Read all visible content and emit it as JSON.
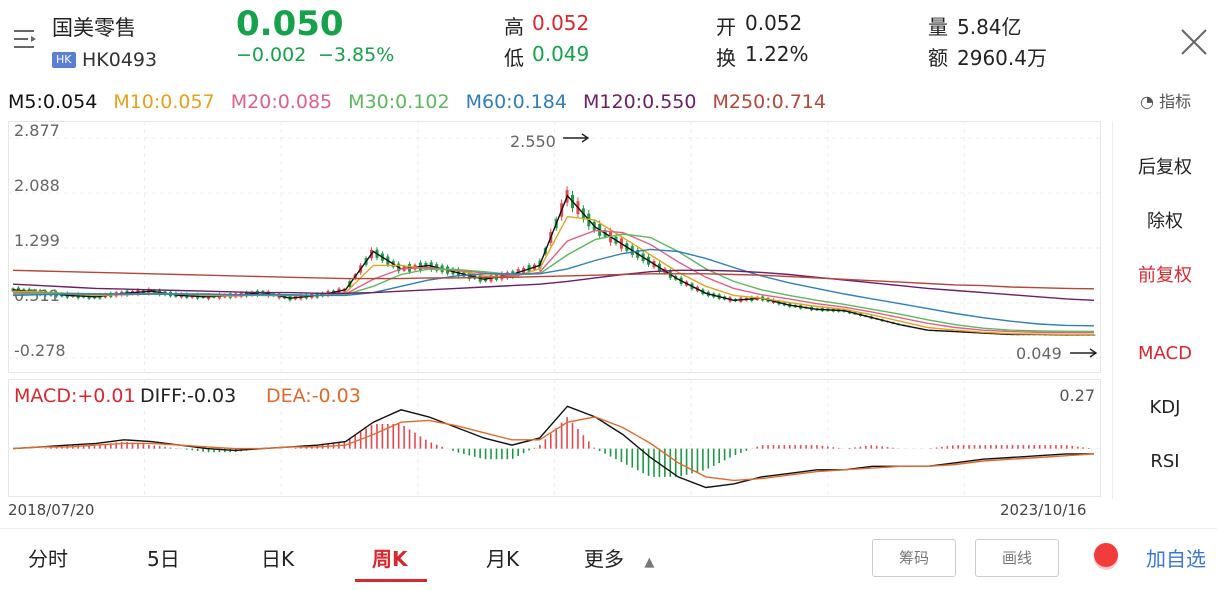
{
  "header": {
    "stock_name": "国美零售",
    "market_badge": "HK",
    "stock_code": "HK0493",
    "price": "0.050",
    "change": "−0.002",
    "change_pct": "−3.85%",
    "stats": [
      {
        "label": "高",
        "value": "0.052",
        "color": "#d9272e"
      },
      {
        "label": "低",
        "value": "0.049",
        "color": "#15a24a"
      },
      {
        "label": "开",
        "value": "0.052",
        "color": "#222222"
      },
      {
        "label": "换",
        "value": "1.22%",
        "color": "#222222"
      },
      {
        "label": "量",
        "value": "5.84亿",
        "color": "#222222"
      },
      {
        "label": "额",
        "value": "2960.4万",
        "color": "#222222"
      }
    ]
  },
  "ma": [
    {
      "label": "M5:0.054",
      "color": "#111111"
    },
    {
      "label": "M10:0.057",
      "color": "#e6a21e"
    },
    {
      "label": "M20:0.085",
      "color": "#e0608a"
    },
    {
      "label": "M30:0.102",
      "color": "#5cb85c"
    },
    {
      "label": "M60:0.184",
      "color": "#2f7fb8"
    },
    {
      "label": "M120:0.550",
      "color": "#6a1f66"
    },
    {
      "label": "M250:0.714",
      "color": "#b4473a"
    }
  ],
  "indicator_label": "指标",
  "chart_data": {
    "type": "line",
    "title": "",
    "y_ticks": [
      "2.877",
      "2.088",
      "1.299",
      "0.511",
      "-0.278"
    ],
    "ylim": [
      -0.278,
      2.877
    ],
    "annotations": {
      "high": "2.550",
      "last": "0.049"
    },
    "x_start": "2018/07/20",
    "x_end": "2023/10/16",
    "series": [
      {
        "name": "M5",
        "color": "#111111",
        "values": [
          0.7,
          0.66,
          0.62,
          0.6,
          0.65,
          0.68,
          0.62,
          0.6,
          0.62,
          0.66,
          0.58,
          0.62,
          0.7,
          1.25,
          1.0,
          1.05,
          0.95,
          0.85,
          0.92,
          1.05,
          2.05,
          1.6,
          1.35,
          1.1,
          0.85,
          0.65,
          0.55,
          0.58,
          0.48,
          0.42,
          0.4,
          0.3,
          0.2,
          0.12,
          0.1,
          0.08,
          0.06,
          0.06,
          0.055,
          0.054
        ]
      },
      {
        "name": "M10",
        "color": "#e6a21e",
        "values": [
          0.68,
          0.67,
          0.64,
          0.62,
          0.63,
          0.65,
          0.64,
          0.62,
          0.61,
          0.63,
          0.62,
          0.62,
          0.66,
          1.05,
          1.05,
          1.0,
          0.98,
          0.9,
          0.88,
          1.0,
          1.75,
          1.7,
          1.45,
          1.2,
          0.95,
          0.75,
          0.62,
          0.58,
          0.52,
          0.46,
          0.42,
          0.34,
          0.25,
          0.16,
          0.12,
          0.09,
          0.07,
          0.065,
          0.06,
          0.057
        ]
      },
      {
        "name": "M20",
        "color": "#e0608a",
        "values": [
          0.66,
          0.66,
          0.65,
          0.64,
          0.63,
          0.64,
          0.64,
          0.63,
          0.62,
          0.62,
          0.62,
          0.62,
          0.64,
          0.85,
          1.0,
          1.02,
          0.98,
          0.94,
          0.9,
          0.95,
          1.4,
          1.55,
          1.52,
          1.35,
          1.1,
          0.88,
          0.72,
          0.63,
          0.57,
          0.5,
          0.45,
          0.38,
          0.3,
          0.22,
          0.16,
          0.12,
          0.1,
          0.09,
          0.087,
          0.085
        ]
      },
      {
        "name": "M30",
        "color": "#5cb85c",
        "values": [
          0.64,
          0.65,
          0.65,
          0.64,
          0.64,
          0.64,
          0.64,
          0.63,
          0.63,
          0.62,
          0.62,
          0.62,
          0.63,
          0.75,
          0.92,
          1.0,
          0.99,
          0.96,
          0.92,
          0.93,
          1.2,
          1.42,
          1.5,
          1.45,
          1.25,
          1.0,
          0.82,
          0.7,
          0.62,
          0.55,
          0.49,
          0.42,
          0.35,
          0.27,
          0.2,
          0.15,
          0.12,
          0.11,
          0.105,
          0.102
        ]
      },
      {
        "name": "M60",
        "color": "#2f7fb8",
        "values": [
          0.62,
          0.63,
          0.64,
          0.64,
          0.64,
          0.64,
          0.64,
          0.64,
          0.63,
          0.63,
          0.63,
          0.62,
          0.62,
          0.66,
          0.75,
          0.84,
          0.9,
          0.93,
          0.93,
          0.93,
          1.0,
          1.12,
          1.22,
          1.28,
          1.25,
          1.15,
          1.02,
          0.9,
          0.8,
          0.72,
          0.64,
          0.57,
          0.5,
          0.43,
          0.36,
          0.3,
          0.25,
          0.21,
          0.19,
          0.184
        ]
      },
      {
        "name": "M120",
        "color": "#6a1f66",
        "values": [
          0.78,
          0.76,
          0.74,
          0.72,
          0.71,
          0.7,
          0.69,
          0.68,
          0.67,
          0.66,
          0.66,
          0.65,
          0.65,
          0.66,
          0.68,
          0.7,
          0.72,
          0.74,
          0.76,
          0.78,
          0.82,
          0.87,
          0.92,
          0.96,
          0.98,
          0.98,
          0.97,
          0.95,
          0.92,
          0.88,
          0.84,
          0.8,
          0.76,
          0.72,
          0.69,
          0.66,
          0.63,
          0.6,
          0.57,
          0.55
        ]
      },
      {
        "name": "M250",
        "color": "#b4473a",
        "values": [
          0.98,
          0.97,
          0.96,
          0.95,
          0.94,
          0.93,
          0.92,
          0.91,
          0.9,
          0.89,
          0.88,
          0.87,
          0.86,
          0.86,
          0.86,
          0.87,
          0.87,
          0.88,
          0.88,
          0.89,
          0.9,
          0.91,
          0.92,
          0.93,
          0.93,
          0.93,
          0.92,
          0.91,
          0.89,
          0.87,
          0.85,
          0.83,
          0.81,
          0.79,
          0.77,
          0.76,
          0.74,
          0.73,
          0.72,
          0.714
        ]
      }
    ]
  },
  "macd_data": {
    "header": [
      {
        "label": "MACD:+0.01",
        "color": "#d9272e"
      },
      {
        "label": "DIFF:-0.03",
        "color": "#222222"
      },
      {
        "label": "DEA:-0.03",
        "color": "#e06a2c"
      }
    ],
    "top_value": "0.27",
    "diff": [
      0.0,
      0.01,
      0.02,
      0.03,
      0.05,
      0.04,
      0.02,
      0.0,
      -0.01,
      0.0,
      0.01,
      0.02,
      0.04,
      0.15,
      0.22,
      0.18,
      0.12,
      0.06,
      0.02,
      0.06,
      0.24,
      0.18,
      0.08,
      -0.05,
      -0.16,
      -0.22,
      -0.2,
      -0.16,
      -0.14,
      -0.12,
      -0.12,
      -0.1,
      -0.1,
      -0.1,
      -0.08,
      -0.06,
      -0.05,
      -0.04,
      -0.03,
      -0.03
    ],
    "dea": [
      0.0,
      0.01,
      0.01,
      0.02,
      0.03,
      0.03,
      0.02,
      0.01,
      0.0,
      0.0,
      0.01,
      0.01,
      0.02,
      0.08,
      0.15,
      0.16,
      0.13,
      0.09,
      0.05,
      0.05,
      0.15,
      0.18,
      0.12,
      0.03,
      -0.08,
      -0.16,
      -0.18,
      -0.17,
      -0.15,
      -0.13,
      -0.12,
      -0.11,
      -0.1,
      -0.1,
      -0.09,
      -0.07,
      -0.06,
      -0.05,
      -0.04,
      -0.03
    ],
    "ylim": [
      -0.24,
      0.27
    ]
  },
  "side_panel": [
    {
      "label": "后复权",
      "active": false
    },
    {
      "label": "除权",
      "active": false
    },
    {
      "label": "前复权",
      "active": true
    },
    {
      "label": "MACD",
      "active": true
    },
    {
      "label": "KDJ",
      "active": false
    },
    {
      "label": "RSI",
      "active": false
    }
  ],
  "tabs": [
    {
      "label": "分时",
      "active": false
    },
    {
      "label": "5日",
      "active": false
    },
    {
      "label": "日K",
      "active": false
    },
    {
      "label": "周K",
      "active": true
    },
    {
      "label": "月K",
      "active": false
    },
    {
      "label": "更多",
      "active": false
    }
  ],
  "bottom_buttons": {
    "chips": "筹码",
    "draw": "画线",
    "add_fav": "加自选"
  }
}
